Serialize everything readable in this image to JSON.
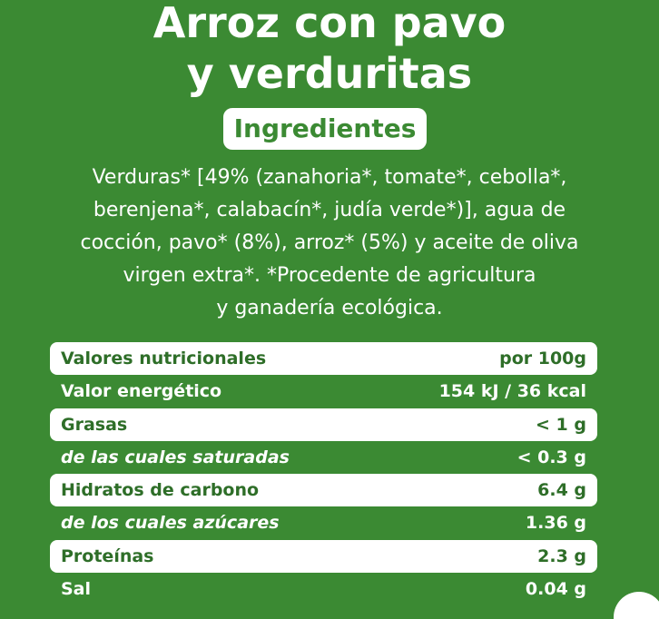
{
  "title": {
    "line1": "Arroz con pavo",
    "line2": "y verduritas"
  },
  "ingredients_heading": "Ingredientes",
  "ingredients_lines": [
    "Verduras* [49% (zanahoria*, tomate*, cebolla*,",
    "berenjena*, calabacín*, judía verde*)], agua de",
    "cocción, pavo* (8%), arroz* (5%) y aceite de oliva",
    "virgen extra*. *Procedente de agricultura",
    "y ganadería ecológica."
  ],
  "nutrition": {
    "rows": [
      {
        "label": "Valores nutricionales",
        "value": "por 100g"
      },
      {
        "label": "Valor energético",
        "value": "154 kJ / 36 kcal"
      },
      {
        "label": "Grasas",
        "value": "< 1 g"
      },
      {
        "label": "de las cuales saturadas",
        "value": "< 0.3 g"
      },
      {
        "label": "Hidratos de carbono",
        "value": "6.4 g"
      },
      {
        "label": "de los cuales azúcares",
        "value": "1.36 g"
      },
      {
        "label": "Proteínas",
        "value": "2.3 g"
      },
      {
        "label": "Sal",
        "value": "0.04 g"
      }
    ]
  },
  "colors": {
    "background": "#3b8a33",
    "text_light": "#ffffff",
    "text_green": "#2e6e28"
  }
}
